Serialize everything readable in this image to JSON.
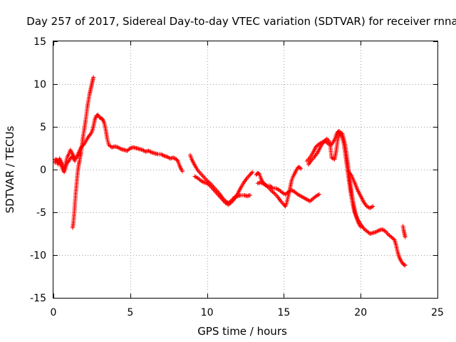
{
  "chart_data": {
    "type": "scatter",
    "title": "Day 257 of 2017, Sidereal Day-to-day VTEC variation (SDTVAR) for receiver rnna",
    "xlabel": "GPS time / hours",
    "ylabel": "SDTVAR / TECUs",
    "xlim": [
      0,
      25
    ],
    "ylim": [
      -15,
      15
    ],
    "xticks": [
      "0",
      "5",
      "10",
      "15",
      "20",
      "25"
    ],
    "yticks": [
      "-15",
      "-10",
      "-5",
      "0",
      "5",
      "10",
      "15"
    ],
    "grid": true,
    "marker": "+",
    "color": "#ff0000",
    "series": [
      {
        "name": "trace-1",
        "points": [
          [
            0.1,
            0.8
          ],
          [
            0.2,
            1.2
          ],
          [
            0.3,
            0.6
          ],
          [
            0.4,
            1.3
          ],
          [
            0.5,
            0.9
          ],
          [
            0.6,
            0.5
          ],
          [
            0.7,
            0.0
          ],
          [
            0.8,
            0.8
          ],
          [
            0.9,
            1.5
          ],
          [
            1.0,
            1.8
          ],
          [
            1.1,
            2.3
          ],
          [
            1.2,
            2.0
          ],
          [
            1.3,
            1.6
          ],
          [
            1.4,
            1.2
          ],
          [
            1.5,
            1.4
          ],
          [
            1.6,
            1.8
          ],
          [
            1.7,
            2.2
          ],
          [
            1.8,
            2.6
          ],
          [
            1.9,
            2.8
          ],
          [
            2.0,
            3.0
          ],
          [
            2.1,
            3.3
          ],
          [
            2.2,
            3.6
          ],
          [
            2.3,
            3.9
          ],
          [
            2.4,
            4.1
          ],
          [
            2.5,
            4.4
          ],
          [
            2.6,
            5.0
          ],
          [
            2.7,
            5.9
          ],
          [
            2.8,
            6.3
          ],
          [
            2.9,
            6.4
          ],
          [
            3.0,
            6.1
          ],
          [
            3.1,
            6.0
          ],
          [
            3.2,
            5.9
          ],
          [
            3.3,
            5.5
          ],
          [
            3.4,
            4.7
          ],
          [
            3.5,
            3.6
          ],
          [
            3.6,
            2.9
          ],
          [
            3.8,
            2.6
          ],
          [
            4.0,
            2.7
          ],
          [
            4.2,
            2.6
          ],
          [
            4.4,
            2.4
          ],
          [
            4.6,
            2.3
          ],
          [
            4.8,
            2.2
          ],
          [
            5.0,
            2.5
          ],
          [
            5.2,
            2.6
          ],
          [
            5.4,
            2.5
          ],
          [
            5.6,
            2.4
          ],
          [
            5.8,
            2.3
          ],
          [
            6.0,
            2.1
          ],
          [
            6.2,
            2.2
          ],
          [
            6.4,
            2.0
          ],
          [
            6.6,
            1.9
          ],
          [
            6.8,
            1.8
          ],
          [
            7.0,
            1.8
          ],
          [
            7.2,
            1.6
          ],
          [
            7.4,
            1.5
          ],
          [
            7.6,
            1.3
          ],
          [
            7.8,
            1.4
          ],
          [
            8.0,
            1.2
          ],
          [
            8.1,
            1.0
          ],
          [
            8.2,
            0.5
          ],
          [
            8.3,
            0.1
          ],
          [
            8.4,
            -0.2
          ]
        ]
      },
      {
        "name": "trace-2",
        "points": [
          [
            0.1,
            1.2
          ],
          [
            0.3,
            1.0
          ],
          [
            0.5,
            0.5
          ],
          [
            0.6,
            0.0
          ],
          [
            0.7,
            -0.3
          ],
          [
            0.8,
            0.3
          ],
          [
            0.9,
            0.8
          ],
          [
            1.0,
            1.0
          ],
          [
            1.1,
            1.3
          ],
          [
            1.2,
            1.5
          ],
          [
            1.3,
            1.3
          ],
          [
            1.4,
            1.0
          ]
        ]
      },
      {
        "name": "trace-3",
        "points": [
          [
            1.25,
            -6.8
          ],
          [
            1.3,
            -6.2
          ],
          [
            1.35,
            -5.2
          ],
          [
            1.4,
            -4.0
          ],
          [
            1.45,
            -2.8
          ],
          [
            1.5,
            -1.8
          ],
          [
            1.55,
            -0.8
          ],
          [
            1.6,
            0.0
          ],
          [
            1.65,
            0.6
          ],
          [
            1.7,
            1.0
          ],
          [
            1.75,
            1.6
          ],
          [
            1.8,
            2.0
          ],
          [
            1.85,
            2.7
          ],
          [
            1.9,
            3.5
          ],
          [
            1.95,
            4.1
          ],
          [
            2.0,
            4.6
          ],
          [
            2.05,
            5.2
          ],
          [
            2.1,
            5.8
          ],
          [
            2.15,
            6.5
          ],
          [
            2.2,
            7.2
          ],
          [
            2.25,
            7.8
          ],
          [
            2.3,
            8.3
          ],
          [
            2.35,
            8.8
          ],
          [
            2.4,
            9.2
          ],
          [
            2.45,
            9.6
          ],
          [
            2.5,
            10.0
          ],
          [
            2.55,
            10.4
          ],
          [
            2.6,
            10.8
          ]
        ]
      },
      {
        "name": "trace-4",
        "points": [
          [
            8.9,
            1.7
          ],
          [
            9.0,
            1.2
          ],
          [
            9.2,
            0.5
          ],
          [
            9.4,
            -0.1
          ],
          [
            9.6,
            -0.5
          ],
          [
            9.8,
            -0.9
          ],
          [
            10.0,
            -1.3
          ],
          [
            10.2,
            -1.6
          ],
          [
            10.4,
            -2.0
          ],
          [
            10.6,
            -2.4
          ],
          [
            10.8,
            -2.8
          ],
          [
            11.0,
            -3.3
          ],
          [
            11.2,
            -3.7
          ],
          [
            11.4,
            -3.9
          ],
          [
            11.6,
            -3.6
          ],
          [
            11.8,
            -3.2
          ],
          [
            12.0,
            -3.1
          ],
          [
            12.2,
            -3.0
          ],
          [
            12.4,
            -3.0
          ],
          [
            12.6,
            -3.1
          ],
          [
            12.8,
            -3.0
          ]
        ]
      },
      {
        "name": "trace-5",
        "points": [
          [
            9.2,
            -0.8
          ],
          [
            9.4,
            -1.0
          ],
          [
            9.6,
            -1.3
          ],
          [
            9.8,
            -1.5
          ],
          [
            10.0,
            -1.6
          ],
          [
            10.2,
            -1.9
          ],
          [
            10.4,
            -2.3
          ],
          [
            10.6,
            -2.7
          ],
          [
            10.8,
            -3.1
          ],
          [
            11.0,
            -3.5
          ],
          [
            11.2,
            -3.9
          ],
          [
            11.4,
            -4.1
          ],
          [
            11.6,
            -3.8
          ],
          [
            11.8,
            -3.4
          ],
          [
            12.0,
            -2.8
          ],
          [
            12.2,
            -2.1
          ],
          [
            12.4,
            -1.5
          ],
          [
            12.6,
            -1.0
          ],
          [
            12.8,
            -0.6
          ],
          [
            12.95,
            -0.3
          ]
        ]
      },
      {
        "name": "trace-6",
        "points": [
          [
            13.2,
            -0.6
          ],
          [
            13.3,
            -0.4
          ],
          [
            13.4,
            -0.5
          ],
          [
            13.5,
            -1.0
          ],
          [
            13.6,
            -1.4
          ],
          [
            13.8,
            -1.8
          ],
          [
            14.0,
            -2.1
          ],
          [
            14.2,
            -2.5
          ],
          [
            14.4,
            -2.8
          ],
          [
            14.6,
            -3.2
          ],
          [
            14.8,
            -3.7
          ],
          [
            15.0,
            -4.1
          ],
          [
            15.1,
            -4.3
          ],
          [
            15.2,
            -3.8
          ],
          [
            15.3,
            -3.0
          ],
          [
            15.4,
            -2.2
          ],
          [
            15.5,
            -1.3
          ],
          [
            15.6,
            -0.8
          ],
          [
            15.7,
            -0.5
          ],
          [
            15.8,
            -0.1
          ],
          [
            15.9,
            0.2
          ],
          [
            16.0,
            0.3
          ],
          [
            16.1,
            0.1
          ]
        ]
      },
      {
        "name": "trace-7",
        "points": [
          [
            13.3,
            -1.6
          ],
          [
            13.5,
            -1.5
          ],
          [
            13.7,
            -1.7
          ],
          [
            13.9,
            -1.9
          ],
          [
            14.1,
            -1.9
          ],
          [
            14.3,
            -2.2
          ],
          [
            14.5,
            -2.2
          ],
          [
            14.7,
            -2.4
          ],
          [
            14.9,
            -2.7
          ],
          [
            15.1,
            -2.9
          ],
          [
            15.3,
            -2.6
          ],
          [
            15.5,
            -2.4
          ],
          [
            15.7,
            -2.6
          ],
          [
            15.9,
            -2.9
          ],
          [
            16.1,
            -3.1
          ],
          [
            16.3,
            -3.3
          ],
          [
            16.5,
            -3.5
          ],
          [
            16.7,
            -3.7
          ],
          [
            16.9,
            -3.4
          ],
          [
            17.1,
            -3.1
          ],
          [
            17.3,
            -2.9
          ]
        ]
      },
      {
        "name": "trace-8",
        "points": [
          [
            16.5,
            1.0
          ],
          [
            16.7,
            1.4
          ],
          [
            16.9,
            2.0
          ],
          [
            17.1,
            2.7
          ],
          [
            17.3,
            3.0
          ],
          [
            17.5,
            3.2
          ],
          [
            17.7,
            3.3
          ],
          [
            17.9,
            3.0
          ],
          [
            18.1,
            2.9
          ],
          [
            18.3,
            3.5
          ],
          [
            18.4,
            4.0
          ],
          [
            18.5,
            4.4
          ],
          [
            18.6,
            4.5
          ],
          [
            18.7,
            4.2
          ],
          [
            18.8,
            3.7
          ],
          [
            18.9,
            3.0
          ],
          [
            19.0,
            1.8
          ],
          [
            19.1,
            0.5
          ],
          [
            19.2,
            -0.8
          ],
          [
            19.3,
            -2.1
          ],
          [
            19.4,
            -3.2
          ],
          [
            19.5,
            -4.2
          ],
          [
            19.6,
            -5.0
          ],
          [
            19.8,
            -5.8
          ],
          [
            20.0,
            -6.4
          ],
          [
            20.2,
            -6.9
          ],
          [
            20.4,
            -7.2
          ],
          [
            20.6,
            -7.5
          ],
          [
            20.8,
            -7.4
          ],
          [
            21.0,
            -7.3
          ],
          [
            21.2,
            -7.1
          ],
          [
            21.4,
            -7.0
          ],
          [
            21.6,
            -7.2
          ],
          [
            21.8,
            -7.6
          ],
          [
            22.0,
            -7.9
          ],
          [
            22.2,
            -8.2
          ],
          [
            22.3,
            -8.8
          ],
          [
            22.4,
            -9.6
          ],
          [
            22.5,
            -10.2
          ],
          [
            22.6,
            -10.6
          ],
          [
            22.7,
            -10.9
          ],
          [
            22.8,
            -11.1
          ],
          [
            22.9,
            -11.2
          ]
        ]
      },
      {
        "name": "trace-9",
        "points": [
          [
            16.6,
            0.6
          ],
          [
            16.8,
            1.1
          ],
          [
            17.0,
            1.5
          ],
          [
            17.2,
            2.0
          ],
          [
            17.4,
            2.7
          ],
          [
            17.6,
            3.3
          ],
          [
            17.8,
            3.6
          ],
          [
            18.0,
            3.2
          ],
          [
            18.1,
            1.4
          ],
          [
            18.3,
            1.2
          ],
          [
            18.4,
            2.1
          ],
          [
            18.5,
            3.4
          ],
          [
            18.6,
            4.1
          ],
          [
            18.7,
            4.3
          ],
          [
            18.8,
            4.2
          ],
          [
            18.9,
            3.6
          ],
          [
            19.0,
            2.8
          ],
          [
            19.1,
            1.6
          ],
          [
            19.2,
            0.2
          ],
          [
            19.3,
            -1.2
          ],
          [
            19.4,
            -2.5
          ],
          [
            19.5,
            -3.7
          ],
          [
            19.6,
            -4.6
          ],
          [
            19.7,
            -5.4
          ],
          [
            19.8,
            -6.0
          ],
          [
            19.9,
            -6.4
          ],
          [
            20.0,
            -6.7
          ]
        ]
      },
      {
        "name": "trace-10",
        "points": [
          [
            19.2,
            -0.2
          ],
          [
            19.4,
            -0.7
          ],
          [
            19.6,
            -1.5
          ],
          [
            19.8,
            -2.4
          ],
          [
            20.0,
            -3.1
          ],
          [
            20.2,
            -3.8
          ],
          [
            20.4,
            -4.3
          ],
          [
            20.6,
            -4.5
          ],
          [
            20.8,
            -4.3
          ]
        ]
      },
      {
        "name": "trace-11",
        "points": [
          [
            22.75,
            -6.6
          ],
          [
            22.8,
            -7.1
          ],
          [
            22.85,
            -7.5
          ],
          [
            22.9,
            -7.9
          ]
        ]
      }
    ]
  }
}
